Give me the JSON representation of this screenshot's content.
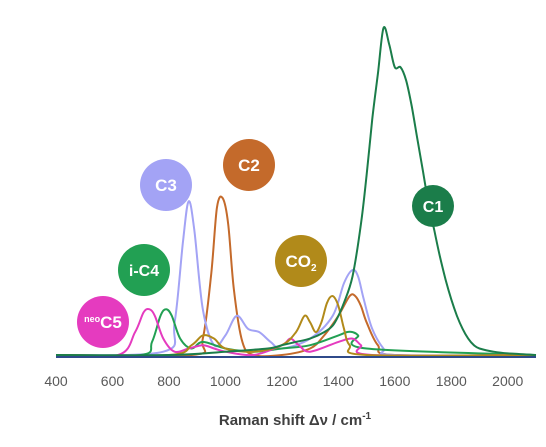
{
  "chart_data": {
    "type": "line",
    "title": "",
    "xlabel_main": "Raman shift Δν / cm",
    "xlabel_sup": "-1",
    "ylabel": "",
    "xlim": [
      400,
      2100
    ],
    "ylim": [
      0,
      1
    ],
    "ticks": [
      "400",
      "600",
      "800",
      "1000",
      "1200",
      "1400",
      "1600",
      "1800",
      "2000"
    ],
    "tick_values": [
      400,
      600,
      800,
      1000,
      1200,
      1400,
      1600,
      1800,
      2000
    ],
    "grid": false,
    "series": [
      {
        "name": "C1",
        "color": "#1b7d4a",
        "label_sup": "",
        "label_sub": "",
        "x": [
          400,
          800,
          1000,
          1150,
          1200,
          1250,
          1300,
          1350,
          1380,
          1400,
          1420,
          1450,
          1480,
          1500,
          1520,
          1540,
          1560,
          1580,
          1600,
          1620,
          1640,
          1660,
          1680,
          1700,
          1720,
          1740,
          1760,
          1780,
          1800,
          1820,
          1840,
          1860,
          1880,
          1900,
          1950,
          2000,
          2100
        ],
        "y": [
          0.0,
          0.0,
          0.01,
          0.02,
          0.03,
          0.04,
          0.05,
          0.07,
          0.09,
          0.12,
          0.16,
          0.24,
          0.4,
          0.55,
          0.72,
          0.86,
          1.0,
          0.95,
          0.88,
          0.88,
          0.84,
          0.76,
          0.66,
          0.56,
          0.46,
          0.38,
          0.3,
          0.23,
          0.17,
          0.12,
          0.08,
          0.05,
          0.03,
          0.02,
          0.01,
          0.005,
          0.0
        ]
      },
      {
        "name": "C2",
        "color": "#c46a2b",
        "label_sup": "",
        "label_sub": "",
        "x": [
          400,
          880,
          920,
          950,
          970,
          990,
          1010,
          1030,
          1060,
          1100,
          1200,
          1300,
          1350,
          1400,
          1440,
          1460,
          1480,
          1500,
          1540,
          1600,
          2100
        ],
        "y": [
          0.0,
          0.0,
          0.05,
          0.25,
          0.45,
          0.48,
          0.4,
          0.2,
          0.04,
          0.0,
          0.0,
          0.02,
          0.06,
          0.12,
          0.18,
          0.18,
          0.15,
          0.1,
          0.03,
          0.0,
          0.0
        ]
      },
      {
        "name": "C3",
        "color": "#a3a3f5",
        "label_sup": "",
        "label_sub": "",
        "x": [
          400,
          780,
          820,
          850,
          870,
          890,
          920,
          960,
          1000,
          1040,
          1080,
          1120,
          1160,
          1200,
          1300,
          1380,
          1420,
          1450,
          1470,
          1490,
          1520,
          1560,
          1600,
          2100
        ],
        "y": [
          0.0,
          0.01,
          0.1,
          0.35,
          0.47,
          0.38,
          0.14,
          0.03,
          0.06,
          0.12,
          0.08,
          0.07,
          0.04,
          0.02,
          0.05,
          0.12,
          0.22,
          0.26,
          0.24,
          0.17,
          0.08,
          0.02,
          0.0,
          0.0
        ]
      },
      {
        "name": "i-C4",
        "color": "#22a053",
        "label_sup": "",
        "label_sub": "",
        "x": [
          400,
          700,
          740,
          770,
          790,
          810,
          840,
          880,
          920,
          1000,
          1100,
          1200,
          1300,
          1400,
          1430,
          1450,
          1470,
          1500,
          2100
        ],
        "y": [
          0.0,
          0.0,
          0.04,
          0.12,
          0.14,
          0.12,
          0.05,
          0.02,
          0.04,
          0.02,
          0.01,
          0.02,
          0.03,
          0.06,
          0.07,
          0.07,
          0.06,
          0.02,
          0.0
        ]
      },
      {
        "name": "C5",
        "color": "#e53bbf",
        "label_sup": "neo",
        "label_sub": "",
        "x": [
          400,
          620,
          680,
          710,
          730,
          750,
          780,
          820,
          870,
          920,
          960,
          1000,
          1100,
          1200,
          1230,
          1260,
          1300,
          1400,
          1450,
          1480,
          1520,
          2100
        ],
        "y": [
          0.0,
          0.0,
          0.07,
          0.13,
          0.14,
          0.12,
          0.05,
          0.01,
          0.02,
          0.03,
          0.02,
          0.01,
          0.0,
          0.03,
          0.05,
          0.03,
          0.01,
          0.04,
          0.05,
          0.03,
          0.0,
          0.0
        ]
      },
      {
        "name": "CO",
        "color": "#b18a1a",
        "label_sup": "",
        "label_sub": "2",
        "x": [
          400,
          800,
          880,
          920,
          960,
          1000,
          1100,
          1200,
          1250,
          1280,
          1300,
          1320,
          1340,
          1360,
          1380,
          1400,
          1420,
          1440,
          1500,
          2100
        ],
        "y": [
          0.0,
          0.0,
          0.03,
          0.06,
          0.05,
          0.02,
          0.01,
          0.03,
          0.07,
          0.12,
          0.1,
          0.07,
          0.1,
          0.16,
          0.18,
          0.15,
          0.08,
          0.03,
          0.0,
          0.0
        ]
      }
    ]
  },
  "badges": [
    {
      "text": "C1",
      "color": "#1b7d4a",
      "sup": "",
      "sub": ""
    },
    {
      "text": "C2",
      "color": "#c46a2b",
      "sup": "",
      "sub": ""
    },
    {
      "text": "C3",
      "color": "#a3a3f5",
      "sup": "",
      "sub": ""
    },
    {
      "text": "i-C4",
      "color": "#22a053",
      "sup": "",
      "sub": ""
    },
    {
      "text": "C5",
      "color": "#e53bbf",
      "sup": "neo",
      "sub": ""
    },
    {
      "text": "CO",
      "color": "#b18a1a",
      "sup": "",
      "sub": "2"
    }
  ]
}
